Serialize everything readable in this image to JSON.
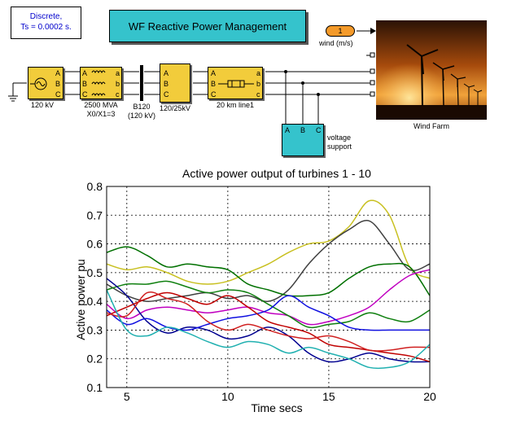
{
  "solver": {
    "line1": "Discrete,",
    "line2": "Ts = 0.0002 s."
  },
  "title_block": {
    "label": "WF Reactive Power Management"
  },
  "wind_const": {
    "value": "1",
    "label": "wind (m/s)"
  },
  "source": {
    "label": "120 kV",
    "ports": [
      "A",
      "B",
      "C"
    ]
  },
  "grid_equiv": {
    "label1": "2500 MVA",
    "label2": "X0/X1=3",
    "ports_in": [
      "A",
      "B",
      "C"
    ],
    "ports_out": [
      "a",
      "b",
      "c"
    ]
  },
  "bus": {
    "label1": "B120",
    "label2": "(120 kV)"
  },
  "transformer": {
    "label": "120/25kV",
    "ports": [
      "A",
      "B",
      "C"
    ]
  },
  "line": {
    "label": "20 km line1",
    "ports_in": [
      "A",
      "B",
      "C"
    ],
    "ports_out": [
      "a",
      "b",
      "c"
    ]
  },
  "wind_farm": {
    "label": "Wind Farm"
  },
  "voltage_support": {
    "label1": "voltage",
    "label2": "support",
    "ports": [
      "A",
      "B",
      "C"
    ]
  },
  "colors": {
    "block_yellow": "#f2cc3b",
    "block_cyan": "#35c3cc",
    "text_blue": "#0000cc",
    "const_orange": "#f49a2a"
  },
  "chart_data": {
    "type": "line",
    "title": "Active power output of turbines 1 - 10",
    "xlabel": "Time secs",
    "ylabel": "Active power pu",
    "xlim": [
      4,
      20
    ],
    "ylim": [
      0.1,
      0.8
    ],
    "grid": true,
    "xticks": [
      5,
      10,
      15,
      20
    ],
    "yticks": [
      0.1,
      0.2,
      0.3,
      0.4,
      0.5,
      0.6,
      0.7,
      0.8
    ],
    "x": [
      4,
      5,
      6,
      7,
      8,
      9,
      10,
      11,
      12,
      13,
      14,
      15,
      16,
      17,
      18,
      19,
      20
    ],
    "series": [
      {
        "color": "#c8c020",
        "values": [
          0.53,
          0.51,
          0.52,
          0.5,
          0.47,
          0.46,
          0.47,
          0.5,
          0.53,
          0.57,
          0.6,
          0.61,
          0.66,
          0.75,
          0.7,
          0.52,
          0.48
        ]
      },
      {
        "color": "#404040",
        "values": [
          0.46,
          0.42,
          0.4,
          0.41,
          0.42,
          0.43,
          0.41,
          0.42,
          0.4,
          0.44,
          0.53,
          0.6,
          0.65,
          0.68,
          0.6,
          0.51,
          0.53
        ]
      },
      {
        "color": "#007000",
        "values": [
          0.57,
          0.59,
          0.56,
          0.52,
          0.53,
          0.52,
          0.51,
          0.46,
          0.44,
          0.42,
          0.42,
          0.43,
          0.48,
          0.52,
          0.53,
          0.52,
          0.42
        ]
      },
      {
        "color": "#c000c0",
        "values": [
          0.39,
          0.34,
          0.37,
          0.38,
          0.37,
          0.36,
          0.37,
          0.38,
          0.36,
          0.35,
          0.32,
          0.33,
          0.35,
          0.38,
          0.44,
          0.49,
          0.51
        ]
      },
      {
        "color": "#108010",
        "values": [
          0.44,
          0.46,
          0.46,
          0.47,
          0.45,
          0.43,
          0.44,
          0.43,
          0.39,
          0.35,
          0.31,
          0.32,
          0.33,
          0.36,
          0.34,
          0.33,
          0.37
        ]
      },
      {
        "color": "#000090",
        "values": [
          0.48,
          0.42,
          0.33,
          0.29,
          0.31,
          0.3,
          0.27,
          0.28,
          0.31,
          0.28,
          0.22,
          0.19,
          0.2,
          0.22,
          0.2,
          0.19,
          0.19
        ]
      },
      {
        "color": "#1010e0",
        "values": [
          0.37,
          0.32,
          0.34,
          0.31,
          0.3,
          0.32,
          0.34,
          0.35,
          0.37,
          0.42,
          0.38,
          0.35,
          0.31,
          0.3,
          0.3,
          0.3,
          0.3
        ]
      },
      {
        "color": "#c00000",
        "values": [
          0.35,
          0.38,
          0.41,
          0.43,
          0.41,
          0.39,
          0.42,
          0.38,
          0.33,
          0.31,
          0.29,
          0.25,
          0.24,
          0.23,
          0.22,
          0.21,
          0.19
        ]
      },
      {
        "color": "#d02020",
        "values": [
          0.36,
          0.35,
          0.43,
          0.41,
          0.39,
          0.33,
          0.3,
          0.32,
          0.3,
          0.28,
          0.27,
          0.28,
          0.26,
          0.23,
          0.23,
          0.24,
          0.24
        ]
      },
      {
        "color": "#20b0b0",
        "values": [
          0.44,
          0.3,
          0.28,
          0.31,
          0.29,
          0.26,
          0.24,
          0.26,
          0.25,
          0.22,
          0.24,
          0.22,
          0.2,
          0.17,
          0.17,
          0.19,
          0.25
        ]
      }
    ]
  }
}
